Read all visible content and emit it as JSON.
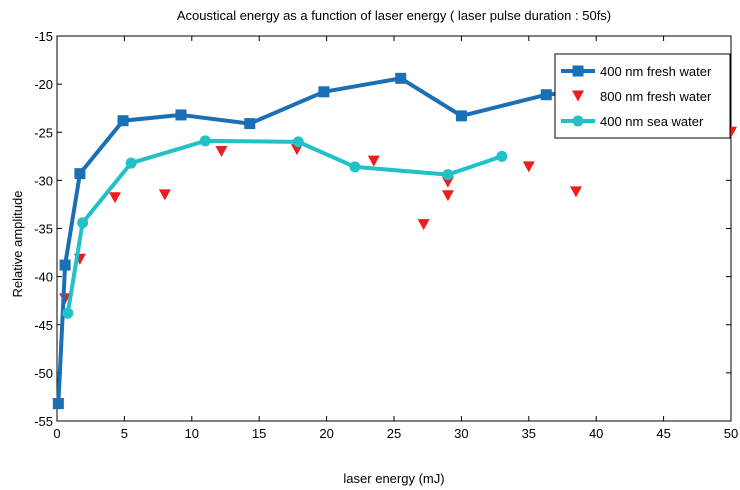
{
  "chart_data": {
    "type": "line",
    "title": "Acoustical energy as a function of laser energy ( laser pulse duration : 50fs)",
    "xlabel": "laser energy (mJ)",
    "ylabel": "Relative amplitude",
    "xlim": [
      0,
      50
    ],
    "ylim": [
      -55,
      -15
    ],
    "xticks": [
      0,
      5,
      10,
      15,
      20,
      25,
      30,
      35,
      40,
      45,
      50
    ],
    "yticks": [
      -15,
      -20,
      -25,
      -30,
      -35,
      -40,
      -45,
      -50,
      -55
    ],
    "xtick_labels": [
      "0",
      "5",
      "10",
      "15",
      "20",
      "25",
      "30",
      "35",
      "40",
      "45",
      "50"
    ],
    "ytick_labels": [
      "-15",
      "-20",
      "-25",
      "-30",
      "-35",
      "-40",
      "-45",
      "-50",
      "-55"
    ],
    "grid": false,
    "legend_position": "top-right",
    "series": [
      {
        "name": "400 nm fresh water",
        "style": "line-square",
        "color": "#1a6fb5",
        "x": [
          0.1,
          0.6,
          1.7,
          4.9,
          9.2,
          14.3,
          19.8,
          25.5,
          30.0,
          36.3,
          41.0
        ],
        "y": [
          -53.2,
          -38.8,
          -29.3,
          -23.8,
          -23.2,
          -24.1,
          -20.8,
          -19.4,
          -23.3,
          -21.1,
          -20.5
        ]
      },
      {
        "name": "800 nm fresh water",
        "style": "marker-triangle-down",
        "color": "#ee1c1c",
        "x": [
          0.1,
          0.6,
          1.7,
          4.3,
          8.0,
          12.2,
          17.8,
          23.5,
          27.2,
          29.0,
          29.0,
          35.0,
          38.5,
          50.0
        ],
        "y": [
          -53.2,
          -42.3,
          -38.2,
          -31.8,
          -31.5,
          -27.0,
          -26.8,
          -28.0,
          -34.6,
          -30.2,
          -31.6,
          -28.6,
          -31.2,
          -25.0
        ]
      },
      {
        "name": "400 nm sea water",
        "style": "line-circle",
        "color": "#21c1c7",
        "x": [
          0.8,
          1.9,
          5.5,
          11.0,
          17.9,
          22.1,
          29.0,
          33.0
        ],
        "y": [
          -43.8,
          -34.4,
          -28.2,
          -25.9,
          -26.0,
          -28.6,
          -29.4,
          -27.5
        ]
      }
    ]
  }
}
